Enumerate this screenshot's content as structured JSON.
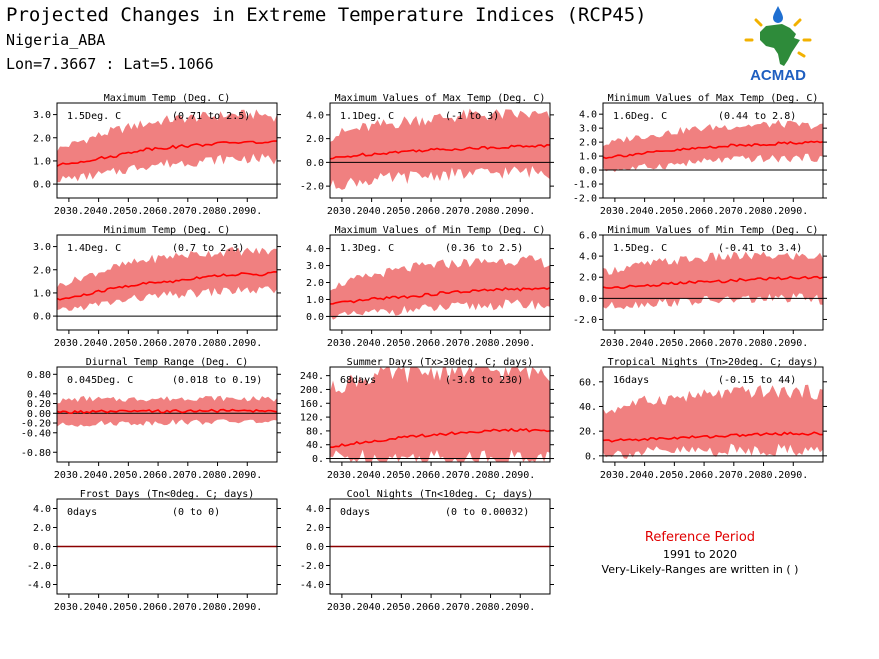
{
  "header": {
    "title": "Projected Changes in Extreme Temperature Indices (RCP45)",
    "location": "Nigeria_ABA",
    "coords": "Lon=7.3667 : Lat=5.1066"
  },
  "logo": {
    "text": "ACMAD",
    "colors": {
      "africa": "#2e8b3a",
      "sun": "#f2b100",
      "drop": "#1f6fd1",
      "text": "#1f5fc0"
    }
  },
  "colors": {
    "band": "#f08080",
    "line": "#ff0000",
    "zero": "#000000"
  },
  "reference": {
    "title": "Reference Period",
    "years": "1991 to 2020",
    "note": "Very-Likely-Ranges are written in ( )"
  },
  "chart_data": [
    {
      "type": "area",
      "title": "Maximum Temp (Deg. C)",
      "value_label": "1.5Deg. C",
      "range_label": "(0.71 to 2.5)",
      "ylim": [
        -0.6,
        3.5
      ],
      "yticks": [
        "0.0",
        "1.0",
        "2.0",
        "3.0"
      ],
      "ytick_values": [
        0,
        1,
        2,
        3
      ],
      "x_ticks": [
        "2030.",
        "2040.",
        "2050.",
        "2060.",
        "2070.",
        "2080.",
        "2090."
      ],
      "x": [
        2026,
        2035,
        2045,
        2055,
        2065,
        2075,
        2085,
        2095,
        2100
      ],
      "median": [
        0.8,
        1.0,
        1.2,
        1.5,
        1.6,
        1.7,
        1.8,
        1.8,
        1.8
      ],
      "low": [
        0.2,
        0.3,
        0.5,
        0.8,
        0.9,
        1.0,
        1.1,
        1.1,
        1.0
      ],
      "high": [
        1.5,
        1.9,
        2.3,
        2.6,
        2.8,
        2.9,
        3.0,
        3.0,
        2.9
      ]
    },
    {
      "type": "area",
      "title": "Maximum Values of Max Temp (Deg. C)",
      "value_label": "1.1Deg. C",
      "range_label": "(-1 to 3)",
      "ylim": [
        -3.0,
        5.0
      ],
      "yticks": [
        "-2.0",
        "0.0",
        "2.0",
        "4.0"
      ],
      "ytick_values": [
        -2,
        0,
        2,
        4
      ],
      "x_ticks": [
        "2030.",
        "2040.",
        "2050.",
        "2060.",
        "2070.",
        "2080.",
        "2090."
      ],
      "x": [
        2026,
        2035,
        2045,
        2055,
        2065,
        2075,
        2085,
        2095,
        2100
      ],
      "median": [
        0.3,
        0.6,
        0.8,
        1.0,
        1.1,
        1.2,
        1.3,
        1.4,
        1.4
      ],
      "low": [
        -2.0,
        -1.6,
        -1.4,
        -1.2,
        -1.0,
        -1.0,
        -0.8,
        -0.8,
        -0.9
      ],
      "high": [
        2.2,
        2.8,
        3.2,
        3.6,
        3.8,
        4.0,
        4.0,
        4.0,
        3.8
      ]
    },
    {
      "type": "area",
      "title": "Minimum Values of Max Temp (Deg. C)",
      "value_label": "1.6Deg. C",
      "range_label": "(0.44 to 2.8)",
      "ylim": [
        -2.0,
        4.8
      ],
      "yticks": [
        "-2.0",
        "-1.0",
        "0.0",
        "1.0",
        "2.0",
        "3.0",
        "4.0"
      ],
      "ytick_values": [
        -2,
        -1,
        0,
        1,
        2,
        3,
        4
      ],
      "x_ticks": [
        "2030.",
        "2040.",
        "2050.",
        "2060.",
        "2070.",
        "2080.",
        "2090."
      ],
      "x": [
        2026,
        2035,
        2045,
        2055,
        2065,
        2075,
        2085,
        2095,
        2100
      ],
      "median": [
        0.9,
        1.1,
        1.3,
        1.5,
        1.7,
        1.8,
        1.9,
        2.0,
        2.0
      ],
      "low": [
        0.0,
        0.1,
        0.3,
        0.5,
        0.7,
        0.8,
        0.8,
        0.9,
        0.8
      ],
      "high": [
        1.8,
        2.3,
        2.6,
        2.9,
        3.1,
        3.2,
        3.3,
        3.2,
        3.1
      ]
    },
    {
      "type": "area",
      "title": "Minimum Temp (Deg. C)",
      "value_label": "1.4Deg. C",
      "range_label": "(0.7 to 2.3)",
      "ylim": [
        -0.6,
        3.5
      ],
      "yticks": [
        "0.0",
        "1.0",
        "2.0",
        "3.0"
      ],
      "ytick_values": [
        0,
        1,
        2,
        3
      ],
      "x_ticks": [
        "2030.",
        "2040.",
        "2050.",
        "2060.",
        "2070.",
        "2080.",
        "2090."
      ],
      "x": [
        2026,
        2035,
        2045,
        2055,
        2065,
        2075,
        2085,
        2095,
        2100
      ],
      "median": [
        0.7,
        0.9,
        1.2,
        1.4,
        1.5,
        1.7,
        1.8,
        1.8,
        1.9
      ],
      "low": [
        0.2,
        0.4,
        0.6,
        0.8,
        0.9,
        1.0,
        1.1,
        1.1,
        1.1
      ],
      "high": [
        1.3,
        1.7,
        2.1,
        2.4,
        2.6,
        2.7,
        2.8,
        2.8,
        2.8
      ]
    },
    {
      "type": "area",
      "title": "Maximum Values of Min Temp (Deg. C)",
      "value_label": "1.3Deg. C",
      "range_label": "(0.36 to 2.5)",
      "ylim": [
        -0.8,
        4.8
      ],
      "yticks": [
        "0.0",
        "1.0",
        "2.0",
        "3.0",
        "4.0"
      ],
      "ytick_values": [
        0,
        1,
        2,
        3,
        4
      ],
      "x_ticks": [
        "2030.",
        "2040.",
        "2050.",
        "2060.",
        "2070.",
        "2080.",
        "2090."
      ],
      "x": [
        2026,
        2035,
        2045,
        2055,
        2065,
        2075,
        2085,
        2095,
        2100
      ],
      "median": [
        0.7,
        0.9,
        1.1,
        1.2,
        1.4,
        1.5,
        1.6,
        1.6,
        1.7
      ],
      "low": [
        0.0,
        0.1,
        0.3,
        0.4,
        0.5,
        0.6,
        0.7,
        0.7,
        0.6
      ],
      "high": [
        1.7,
        2.2,
        2.6,
        2.9,
        3.1,
        3.2,
        3.3,
        3.3,
        3.1
      ]
    },
    {
      "type": "area",
      "title": "Minimum Values of Min Temp (Deg. C)",
      "value_label": "1.5Deg. C",
      "range_label": "(-0.41 to 3.4)",
      "ylim": [
        -3.0,
        6.0
      ],
      "yticks": [
        "-2.0",
        "0.0",
        "2.0",
        "4.0",
        "6.0"
      ],
      "ytick_values": [
        -2,
        0,
        2,
        4,
        6
      ],
      "x_ticks": [
        "2030.",
        "2040.",
        "2050.",
        "2060.",
        "2070.",
        "2080.",
        "2090."
      ],
      "x": [
        2026,
        2035,
        2045,
        2055,
        2065,
        2075,
        2085,
        2095,
        2100
      ],
      "median": [
        1.0,
        1.1,
        1.3,
        1.5,
        1.6,
        1.8,
        1.9,
        2.0,
        2.0
      ],
      "low": [
        -0.8,
        -0.6,
        -0.4,
        -0.3,
        -0.2,
        -0.1,
        0.0,
        0.0,
        -0.2
      ],
      "high": [
        2.5,
        3.0,
        3.4,
        3.7,
        3.9,
        4.0,
        4.0,
        4.0,
        3.9
      ]
    },
    {
      "type": "area",
      "title": "Diurnal Temp Range (Deg. C)",
      "value_label": "0.045Deg. C",
      "range_label": "(0.018 to 0.19)",
      "ylim": [
        -1.0,
        0.95
      ],
      "yticks": [
        "-0.80",
        "-0.40",
        "-0.20",
        "0.00",
        "0.20",
        "0.40",
        "0.80"
      ],
      "ytick_values": [
        -0.8,
        -0.4,
        -0.2,
        0,
        0.2,
        0.4,
        0.8
      ],
      "x_ticks": [
        "2030.",
        "2040.",
        "2050.",
        "2060.",
        "2070.",
        "2080.",
        "2090."
      ],
      "x": [
        2026,
        2035,
        2045,
        2055,
        2065,
        2075,
        2085,
        2095,
        2100
      ],
      "median": [
        0.02,
        0.03,
        0.03,
        0.04,
        0.04,
        0.05,
        0.05,
        0.05,
        0.05
      ],
      "low": [
        -0.25,
        -0.22,
        -0.2,
        -0.2,
        -0.18,
        -0.18,
        -0.17,
        -0.17,
        -0.2
      ],
      "high": [
        0.25,
        0.3,
        0.28,
        0.3,
        0.3,
        0.32,
        0.3,
        0.3,
        0.28
      ]
    },
    {
      "type": "area",
      "title": "Summer Days (Tx>30deg. C; days)",
      "value_label": "68days",
      "range_label": "(-3.8 to 230)",
      "ylim": [
        -10,
        265
      ],
      "yticks": [
        "0.",
        "40.",
        "80.",
        "120.",
        "160.",
        "200.",
        "240."
      ],
      "ytick_values": [
        0,
        40,
        80,
        120,
        160,
        200,
        240
      ],
      "x_ticks": [
        "2030.",
        "2040.",
        "2050.",
        "2060.",
        "2070.",
        "2080.",
        "2090."
      ],
      "x": [
        2026,
        2035,
        2045,
        2055,
        2065,
        2075,
        2085,
        2095,
        2100
      ],
      "median": [
        35,
        45,
        55,
        65,
        72,
        78,
        82,
        82,
        80
      ],
      "low": [
        5,
        2,
        0,
        0,
        0,
        0,
        0,
        0,
        0
      ],
      "high": [
        200,
        230,
        245,
        250,
        255,
        255,
        255,
        255,
        250
      ]
    },
    {
      "type": "area",
      "title": "Tropical Nights (Tn>20deg. C; days)",
      "value_label": "16days",
      "range_label": "(-0.15 to 44)",
      "ylim": [
        -5,
        72
      ],
      "yticks": [
        "0.",
        "20.",
        "40.",
        "60."
      ],
      "ytick_values": [
        0,
        20,
        40,
        60
      ],
      "x_ticks": [
        "2030.",
        "2040.",
        "2050.",
        "2060.",
        "2070.",
        "2080.",
        "2090."
      ],
      "x": [
        2026,
        2035,
        2045,
        2055,
        2065,
        2075,
        2085,
        2095,
        2100
      ],
      "median": [
        12,
        13,
        14,
        15,
        16,
        17,
        18,
        18,
        18
      ],
      "low": [
        2,
        2,
        3,
        4,
        4,
        5,
        5,
        5,
        4
      ],
      "high": [
        35,
        42,
        46,
        48,
        50,
        52,
        52,
        52,
        50
      ]
    },
    {
      "type": "area",
      "title": "Frost Days (Tn<0deg. C; days)",
      "value_label": "0days",
      "range_label": "(0 to 0)",
      "ylim": [
        -5.0,
        5.0
      ],
      "yticks": [
        "-4.0",
        "-2.0",
        "0.0",
        "2.0",
        "4.0"
      ],
      "ytick_values": [
        -4,
        -2,
        0,
        2,
        4
      ],
      "x_ticks": [
        "2030.",
        "2040.",
        "2050.",
        "2060.",
        "2070.",
        "2080.",
        "2090."
      ],
      "x": [
        2026,
        2100
      ],
      "median": [
        0,
        0
      ],
      "low": [
        0,
        0
      ],
      "high": [
        0,
        0
      ]
    },
    {
      "type": "area",
      "title": "Cool Nights (Tn<10deg. C; days)",
      "value_label": "0days",
      "range_label": "(0 to 0.00032)",
      "ylim": [
        -5.0,
        5.0
      ],
      "yticks": [
        "-4.0",
        "-2.0",
        "0.0",
        "2.0",
        "4.0"
      ],
      "ytick_values": [
        -4,
        -2,
        0,
        2,
        4
      ],
      "x_ticks": [
        "2030.",
        "2040.",
        "2050.",
        "2060.",
        "2070.",
        "2080.",
        "2090."
      ],
      "x": [
        2026,
        2100
      ],
      "median": [
        0,
        0
      ],
      "low": [
        0,
        0
      ],
      "high": [
        0,
        0
      ]
    }
  ]
}
